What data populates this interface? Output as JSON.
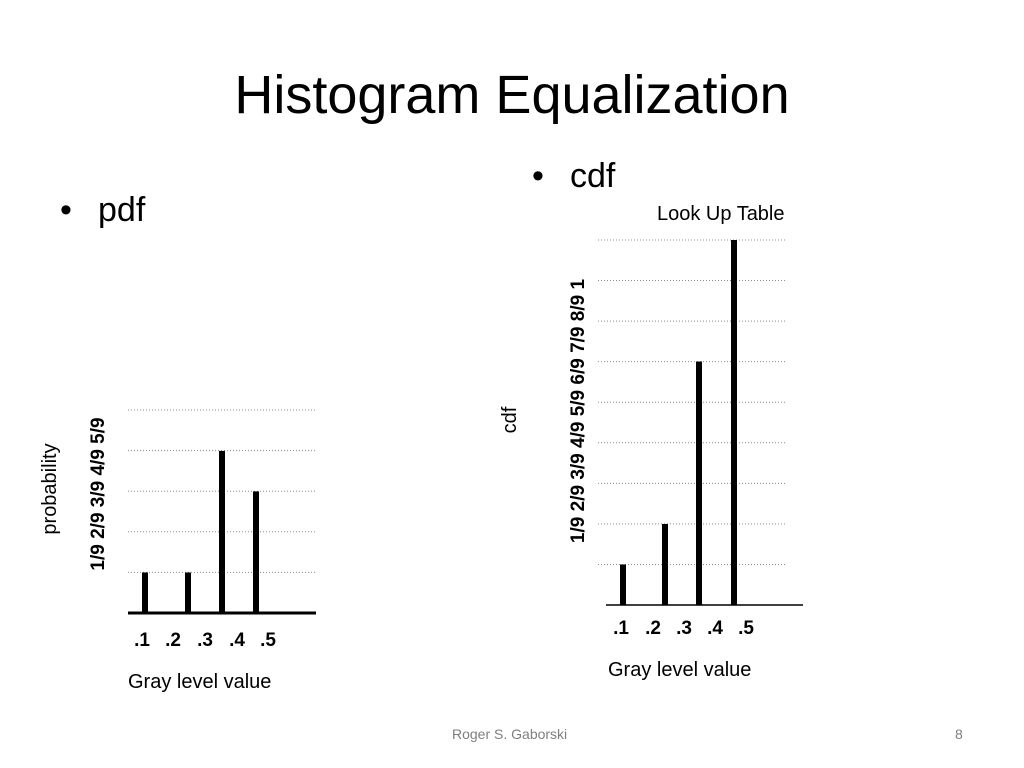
{
  "slide": {
    "title": "Histogram Equalization",
    "footer_author": "Roger S. Gaborski",
    "footer_page": "8"
  },
  "left": {
    "bullet": "pdf",
    "ylabel": "probability",
    "ytick_text": "1/9 2/9 3/9 4/9 5/9",
    "xtick_text": ".1  .2  .3  .4  .5",
    "xlabel": "Gray level value"
  },
  "right": {
    "bullet": "cdf",
    "caption": "Look Up Table",
    "ylabel": "cdf",
    "ytick_text": "1/9 2/9 3/9 4/9 5/9 6/9 7/9 8/9 1",
    "xtick_text": ".1  .2  .3  .4  .5",
    "xlabel": "Gray level value"
  },
  "chart_data": [
    {
      "type": "bar",
      "title": "pdf",
      "xlabel": "Gray level value",
      "ylabel": "probability",
      "categories": [
        ".1",
        ".2",
        ".3",
        ".4",
        ".5"
      ],
      "values": [
        0.111,
        0.111,
        0.444,
        0.333,
        0
      ],
      "yticks": [
        "1/9",
        "2/9",
        "3/9",
        "4/9",
        "5/9"
      ],
      "ylim": [
        0,
        0.556
      ],
      "grid": true,
      "bar_color": "#000000"
    },
    {
      "type": "bar",
      "title": "cdf",
      "caption": "Look Up Table",
      "xlabel": "Gray level value",
      "ylabel": "cdf",
      "categories": [
        ".1",
        ".2",
        ".3",
        ".4",
        ".5"
      ],
      "values": [
        0.111,
        0.222,
        0.667,
        1.0,
        0
      ],
      "yticks": [
        "1/9",
        "2/9",
        "3/9",
        "4/9",
        "5/9",
        "6/9",
        "7/9",
        "8/9",
        "1"
      ],
      "ylim": [
        0,
        1
      ],
      "grid": true,
      "bar_color": "#000000"
    }
  ]
}
